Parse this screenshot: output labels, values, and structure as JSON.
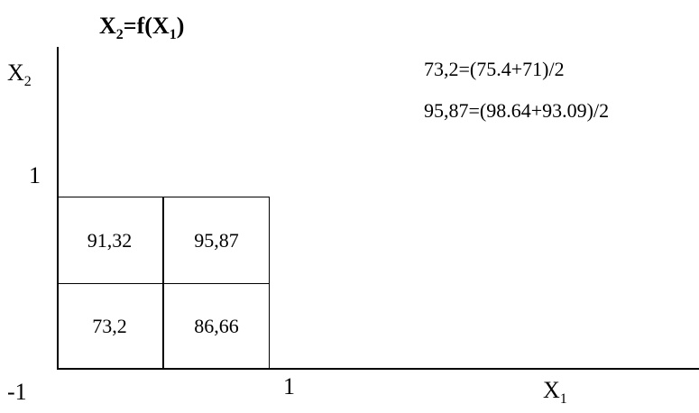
{
  "title": {
    "main": "X",
    "sub": "2",
    "eq": "=f(X",
    "sub2": "1",
    "close": ")"
  },
  "y_axis_label": {
    "main": "X",
    "sub": "2"
  },
  "x_axis_label": {
    "main": "X",
    "sub": "1"
  },
  "ticks": {
    "y_top": "1",
    "x_left": "-1",
    "x_right": "1"
  },
  "notes": [
    "73,2=(75.4+71)/2",
    "95,87=(98.64+93.09)/2"
  ],
  "grid": {
    "top_left": "91,32",
    "top_right": "95,87",
    "bottom_left": "73,2",
    "bottom_right": "86,66"
  }
}
